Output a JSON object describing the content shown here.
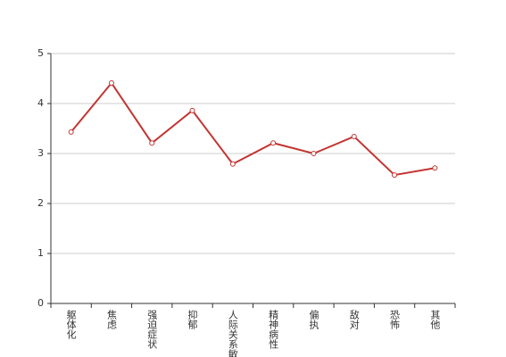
{
  "chart_data": {
    "type": "line",
    "categories": [
      "躯体化",
      "焦虑",
      "强迫症状",
      "抑郁",
      "人际关系敏感",
      "精神病性",
      "偏执",
      "敌对",
      "恐怖",
      "其他"
    ],
    "series": [
      {
        "color": "#c23531",
        "values": [
          3.43,
          4.41,
          3.21,
          3.86,
          2.79,
          3.21,
          3.0,
          3.34,
          2.57,
          2.71
        ]
      }
    ],
    "ylim": [
      0,
      5
    ],
    "yticks": [
      0,
      1,
      2,
      3,
      4,
      5
    ],
    "grid": true
  }
}
